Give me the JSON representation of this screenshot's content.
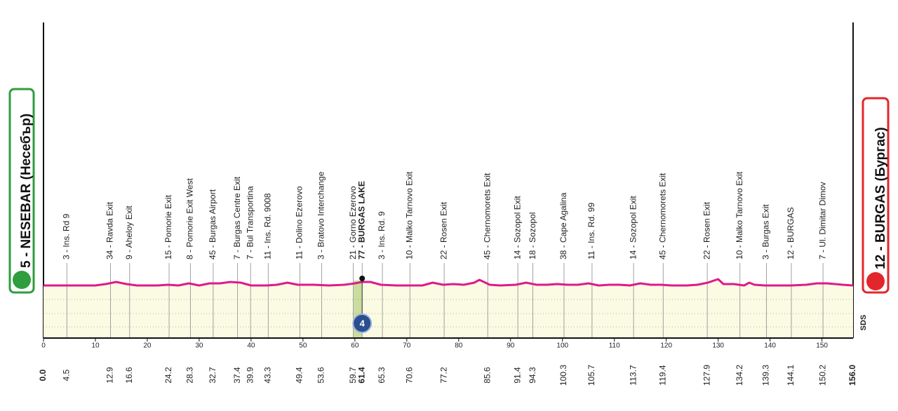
{
  "chart_data": {
    "type": "profile",
    "start": "5 - NESEBAR (Несебър)",
    "finish": "12 - BURGAS (Бургас)",
    "start_km": {
      "value": 0,
      "label": "0.0"
    },
    "finish_km": {
      "value": 156,
      "label": "156.0"
    },
    "xlim": [
      0,
      156
    ],
    "xticks": [
      0,
      10,
      20,
      30,
      40,
      50,
      60,
      70,
      80,
      90,
      100,
      110,
      120,
      130,
      140,
      150
    ],
    "ylim": [
      0,
      100
    ],
    "yticks": [
      16,
      35,
      55
    ],
    "grid": true,
    "line_color": "#df1a8a",
    "fill_color": "#fbfbe3",
    "waypoints": [
      {
        "km": 4.5,
        "name": "3 - Ins. Rd 9"
      },
      {
        "km": 12.9,
        "name": "34 - Ravda Exit"
      },
      {
        "km": 16.6,
        "name": "9 - Aheloy Exit"
      },
      {
        "km": 24.2,
        "name": "15 - Pomorie Exit"
      },
      {
        "km": 28.3,
        "name": "8 - Pomorie Exit West"
      },
      {
        "km": 32.7,
        "name": "45 - Burgas Airport"
      },
      {
        "km": 37.4,
        "name": "7 - Burgas Centre Exit"
      },
      {
        "km": 39.9,
        "name": "7 - Bul Transportina"
      },
      {
        "km": 43.3,
        "name": "11 - Ins. Rd. 9008"
      },
      {
        "km": 49.4,
        "name": "11 - Dolino Ezerovo"
      },
      {
        "km": 53.6,
        "name": "3 - Bratovo Interchange"
      },
      {
        "km": 59.7,
        "name": "21 - Gorno Ezerovo"
      },
      {
        "km": 61.4,
        "name": "77 - BURGAS LAKE",
        "bold": true
      },
      {
        "km": 65.3,
        "name": "3 - Ins. Rd. 9"
      },
      {
        "km": 70.6,
        "name": "10 - Malko Tarnovo Exit"
      },
      {
        "km": 77.2,
        "name": "22 - Rosen Exit"
      },
      {
        "km": 85.6,
        "name": "45 - Chernomorets Exit"
      },
      {
        "km": 91.4,
        "name": "14 - Sozopol Exit"
      },
      {
        "km": 94.3,
        "name": "18 - Sozopol"
      },
      {
        "km": 100.3,
        "name": "38 - Cape Agalina"
      },
      {
        "km": 105.7,
        "name": "11 - Ins. Rd. 99"
      },
      {
        "km": 113.7,
        "name": "14 - Sozopol Exit"
      },
      {
        "km": 119.4,
        "name": "45 - Chernomorets Exit"
      },
      {
        "km": 127.9,
        "name": "22 - Rosen Exit"
      },
      {
        "km": 134.2,
        "name": "10 - Malko Tarnovo Exit"
      },
      {
        "km": 139.3,
        "name": "3 - Burgas Exit"
      },
      {
        "km": 144.1,
        "name": "12 - BURGAS"
      },
      {
        "km": 150.2,
        "name": "7 - Ul. Dimitar Dimov"
      }
    ],
    "sprint": {
      "km": 61.4,
      "number": 4
    },
    "logo": "SDS",
    "profile": {
      "x": [
        0,
        5,
        10,
        12,
        14,
        16,
        18,
        22,
        24,
        26,
        28,
        30,
        32,
        34,
        36,
        38,
        40,
        43,
        45,
        47,
        49,
        52,
        55,
        58,
        60,
        61.4,
        63,
        65,
        68,
        71,
        73,
        75,
        77,
        79,
        81,
        83,
        84,
        86,
        88,
        91,
        93,
        95,
        97,
        99,
        101,
        103,
        105,
        107,
        109,
        111,
        113,
        115,
        117,
        119,
        121,
        124,
        126,
        128,
        130,
        131,
        133,
        135,
        136,
        137,
        139,
        142,
        144,
        147,
        149,
        151,
        154,
        156
      ],
      "y": [
        75,
        75,
        75,
        77,
        80,
        77,
        75,
        75,
        76,
        75,
        78,
        75,
        78,
        78,
        80,
        79,
        75,
        75,
        76,
        79,
        76,
        76,
        75,
        76,
        78,
        80,
        80,
        76,
        75,
        75,
        75,
        79,
        76,
        77,
        76,
        79,
        83,
        76,
        75,
        76,
        79,
        76,
        76,
        77,
        76,
        76,
        78,
        75,
        76,
        76,
        75,
        78,
        76,
        76,
        75,
        75,
        76,
        79,
        84,
        77,
        77,
        75,
        79,
        76,
        75,
        75,
        75,
        76,
        78,
        78,
        76,
        75
      ]
    }
  }
}
